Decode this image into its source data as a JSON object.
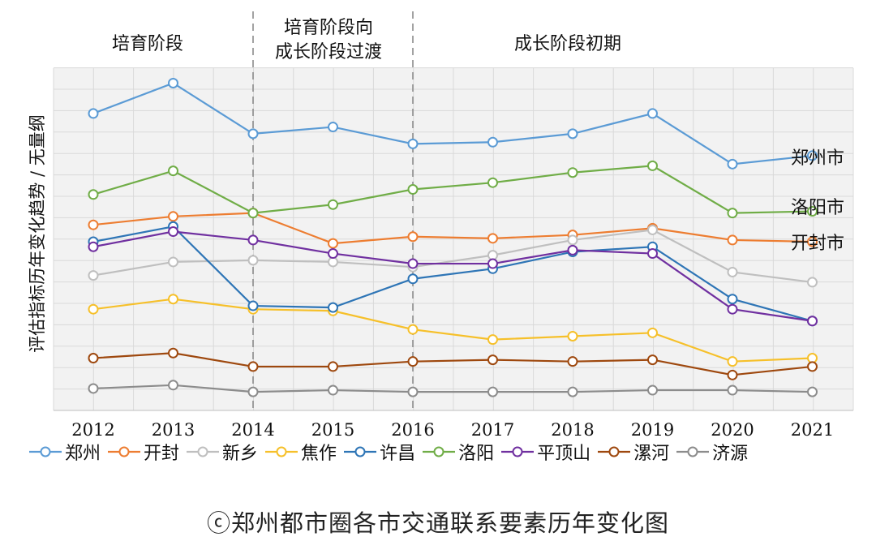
{
  "stages": [
    {
      "label": "培育阶段"
    },
    {
      "label": "培育阶段向\n成长阶段过渡"
    },
    {
      "label": "成长阶段初期"
    }
  ],
  "caption": "ⓒ郑州都市圈各市交通联系要素历年变化图",
  "chart_data": {
    "type": "line",
    "title": "",
    "xlabel": "",
    "ylabel": "评估指标历年变化趋势 / 无量纲",
    "y_ticks_labeled": false,
    "grid": true,
    "legend_position": "bottom",
    "stage_dividers_at": [
      "2014",
      "2016"
    ],
    "ylim": [
      0,
      100
    ],
    "categories": [
      "2012",
      "2013",
      "2014",
      "2015",
      "2016",
      "2017",
      "2018",
      "2019",
      "2020",
      "2021"
    ],
    "series": [
      {
        "name": "郑州",
        "color": "#5b9bd5",
        "values": [
          88,
          97,
          82,
          84,
          79,
          79.5,
          82,
          88,
          73,
          75.5
        ]
      },
      {
        "name": "开封",
        "color": "#ed7d31",
        "values": [
          55,
          57.5,
          58.5,
          49.5,
          51.5,
          51,
          52,
          54,
          50.5,
          50
        ]
      },
      {
        "name": "新乡",
        "color": "#bfbfbf",
        "values": [
          40,
          44,
          44.5,
          44,
          42.5,
          46,
          50.5,
          53.5,
          41,
          38
        ]
      },
      {
        "name": "焦作",
        "color": "#f6c02a",
        "values": [
          30,
          33,
          30,
          29.5,
          24,
          21,
          22,
          23,
          14.5,
          15.5
        ]
      },
      {
        "name": "许昌",
        "color": "#2e75b6",
        "values": [
          50,
          54.5,
          31,
          30.5,
          39,
          42,
          47,
          48.5,
          33,
          26.5
        ]
      },
      {
        "name": "洛阳",
        "color": "#70ad47",
        "values": [
          64,
          71,
          58.5,
          61,
          65.5,
          67.5,
          70.5,
          72.5,
          58.5,
          59
        ]
      },
      {
        "name": "平顶山",
        "color": "#7030a0",
        "values": [
          48.5,
          53,
          50.5,
          46.5,
          43.5,
          43.5,
          47.5,
          46.5,
          30,
          26.5
        ]
      },
      {
        "name": "漯河",
        "color": "#9e480e",
        "values": [
          15.5,
          17,
          13,
          13,
          14.5,
          15,
          14.5,
          15,
          10.5,
          13
        ]
      },
      {
        "name": "济源",
        "color": "#8c8c8c",
        "values": [
          6.5,
          7.5,
          5.5,
          6,
          5.5,
          5.5,
          5.5,
          6,
          6,
          5.5
        ]
      }
    ],
    "end_labels": [
      {
        "series": "郑州",
        "text": "郑州市"
      },
      {
        "series": "洛阳",
        "text": "洛阳市"
      },
      {
        "series": "开封",
        "text": "开封市"
      }
    ]
  }
}
